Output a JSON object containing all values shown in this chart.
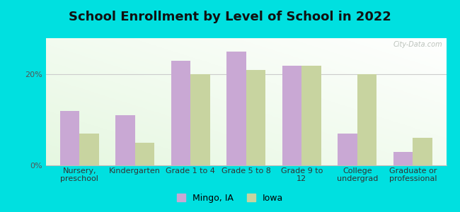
{
  "title": "School Enrollment by Level of School in 2022",
  "categories": [
    "Nursery,\npreschool",
    "Kindergarten",
    "Grade 1 to 4",
    "Grade 5 to 8",
    "Grade 9 to\n12",
    "College\nundergrad",
    "Graduate or\nprofessional"
  ],
  "mingo": [
    12,
    11,
    23,
    25,
    22,
    7,
    3
  ],
  "iowa": [
    7,
    5,
    20,
    21,
    22,
    20,
    6
  ],
  "mingo_color": "#c9a8d4",
  "iowa_color": "#c8d4a0",
  "background_color": "#00e0e0",
  "ylim": [
    0,
    28
  ],
  "yticks": [
    0,
    20
  ],
  "ytick_labels": [
    "0%",
    "20%"
  ],
  "legend_mingo": "Mingo, IA",
  "legend_iowa": "Iowa",
  "title_fontsize": 13,
  "tick_fontsize": 8,
  "legend_fontsize": 9,
  "bar_width": 0.35,
  "watermark": "City-Data.com"
}
